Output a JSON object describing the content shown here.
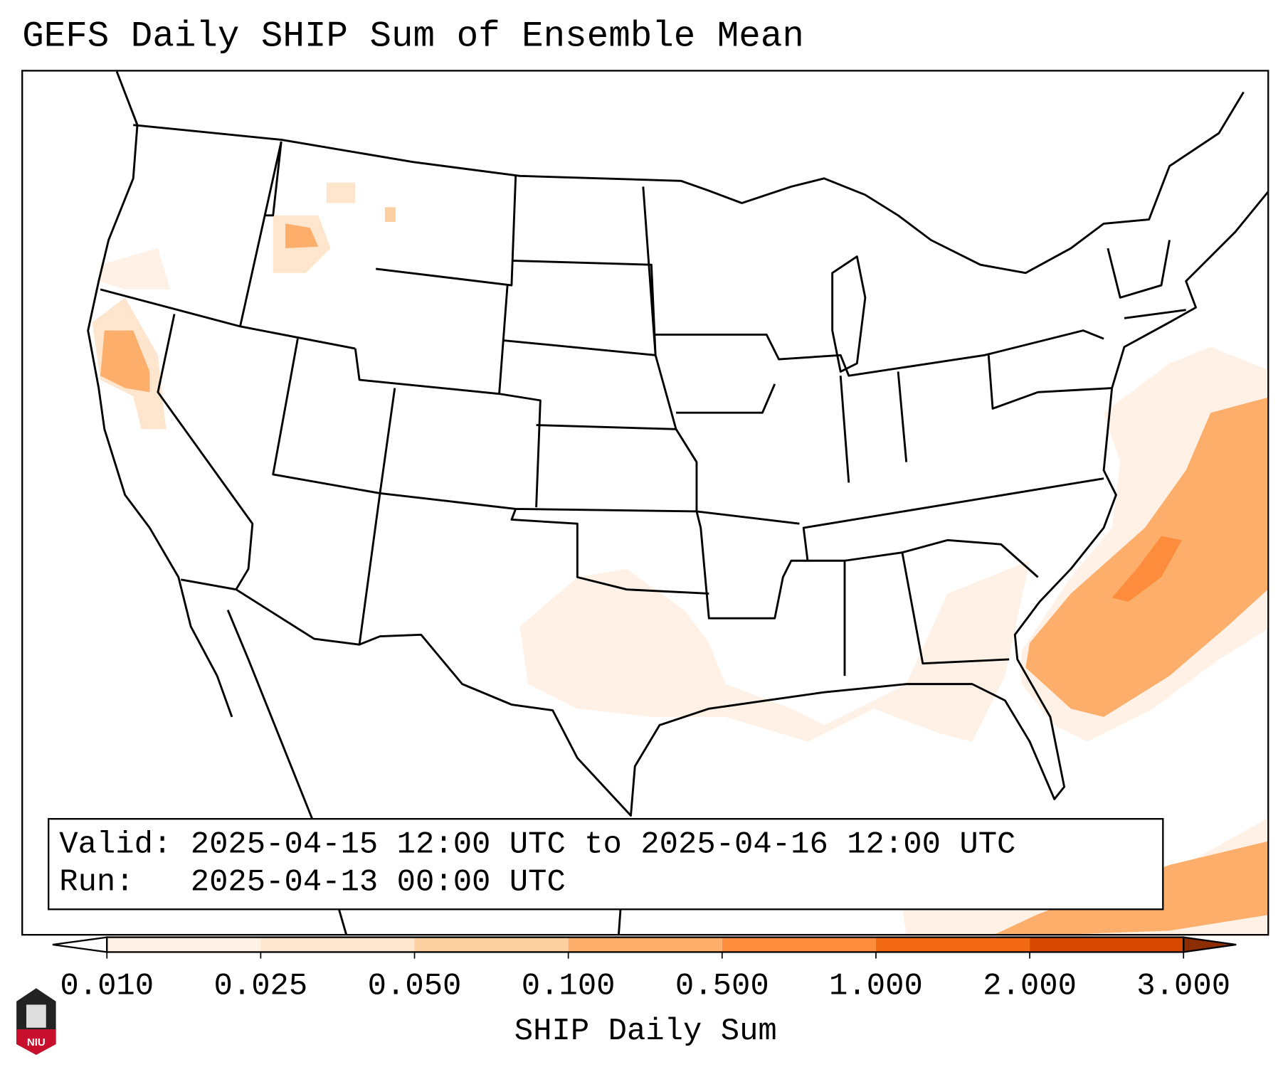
{
  "title": "GEFS Daily SHIP Sum of Ensemble Mean",
  "legend": {
    "valid_line": "Valid: 2025-04-15 12:00 UTC to 2025-04-16 12:00 UTC",
    "run_line": "Run:   2025-04-13 00:00 UTC"
  },
  "colorbar": {
    "label": "SHIP Daily Sum",
    "ticks": [
      "0.010",
      "0.025",
      "0.050",
      "0.100",
      "0.500",
      "1.000",
      "2.000",
      "3.000"
    ],
    "colors": [
      "#fff1e5",
      "#fee6ce",
      "#fdd0a2",
      "#fdae6b",
      "#fd8d3c",
      "#f16913",
      "#d94801"
    ],
    "over_color": "#8c2d04",
    "under_color": "#ffffff"
  },
  "logo": {
    "text": "NIU"
  }
}
